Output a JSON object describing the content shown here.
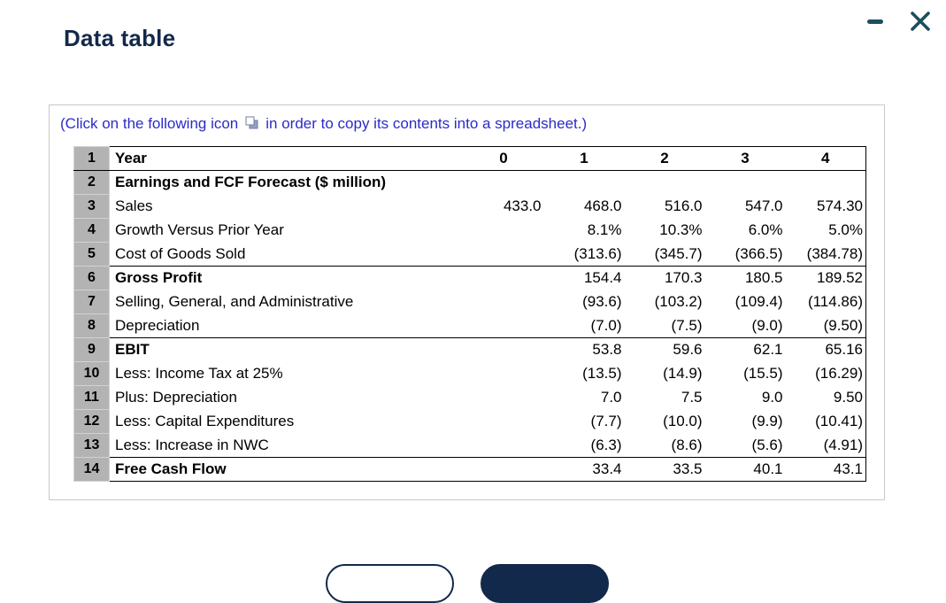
{
  "window": {
    "title": "Data table"
  },
  "instruction": {
    "prefix": "(Click on the following icon",
    "suffix": "in order to copy its contents into a spreadsheet.)"
  },
  "table": {
    "rows": [
      {
        "num": "1",
        "label": "Year",
        "header": true,
        "bold": true,
        "values": [
          "0",
          "1",
          "2",
          "3",
          "4"
        ]
      },
      {
        "num": "2",
        "label": "Earnings and FCF Forecast ($ million)",
        "bold": true,
        "values": [
          "",
          "",
          "",
          "",
          ""
        ]
      },
      {
        "num": "3",
        "label": "Sales",
        "values": [
          "433.0",
          "468.0",
          "516.0",
          "547.0",
          "574.30"
        ]
      },
      {
        "num": "4",
        "label": "Growth Versus Prior Year",
        "values": [
          "",
          "8.1%",
          "10.3%",
          "6.0%",
          "5.0%"
        ]
      },
      {
        "num": "5",
        "label": "Cost of Goods Sold",
        "values": [
          "",
          "(313.6)",
          "(345.7)",
          "(366.5)",
          "(384.78)"
        ]
      },
      {
        "num": "6",
        "label": "Gross Profit",
        "bold": true,
        "section_start": true,
        "values": [
          "",
          "154.4",
          "170.3",
          "180.5",
          "189.52"
        ]
      },
      {
        "num": "7",
        "label": "Selling, General, and Administrative",
        "values": [
          "",
          "(93.6)",
          "(103.2)",
          "(109.4)",
          "(114.86)"
        ]
      },
      {
        "num": "8",
        "label": "Depreciation",
        "values": [
          "",
          "(7.0)",
          "(7.5)",
          "(9.0)",
          "(9.50)"
        ]
      },
      {
        "num": "9",
        "label": "EBIT",
        "bold": true,
        "section_start": true,
        "values": [
          "",
          "53.8",
          "59.6",
          "62.1",
          "65.16"
        ]
      },
      {
        "num": "10",
        "label": "Less: Income Tax at 25%",
        "values": [
          "",
          "(13.5)",
          "(14.9)",
          "(15.5)",
          "(16.29)"
        ]
      },
      {
        "num": "11",
        "label": "Plus: Depreciation",
        "values": [
          "",
          "7.0",
          "7.5",
          "9.0",
          "9.50"
        ]
      },
      {
        "num": "12",
        "label": "Less: Capital Expenditures",
        "values": [
          "",
          "(7.7)",
          "(10.0)",
          "(9.9)",
          "(10.41)"
        ]
      },
      {
        "num": "13",
        "label": "Less: Increase in NWC",
        "values": [
          "",
          "(6.3)",
          "(8.6)",
          "(5.6)",
          "(4.91)"
        ]
      },
      {
        "num": "14",
        "label": "Free Cash Flow",
        "bold": true,
        "section_start": true,
        "values": [
          "",
          "33.4",
          "33.5",
          "40.1",
          "43.1"
        ]
      }
    ]
  },
  "footer": {
    "left_button_label": "",
    "right_button_label": ""
  },
  "colors": {
    "title_color": "#13294b",
    "instruction_color": "#2b2bc8",
    "window_controls": "#1d4d5f",
    "row_num_bg": "#b3b3b3",
    "panel_border": "#c9c9c9",
    "table_border": "#000000",
    "primary_button": "#13294b"
  }
}
